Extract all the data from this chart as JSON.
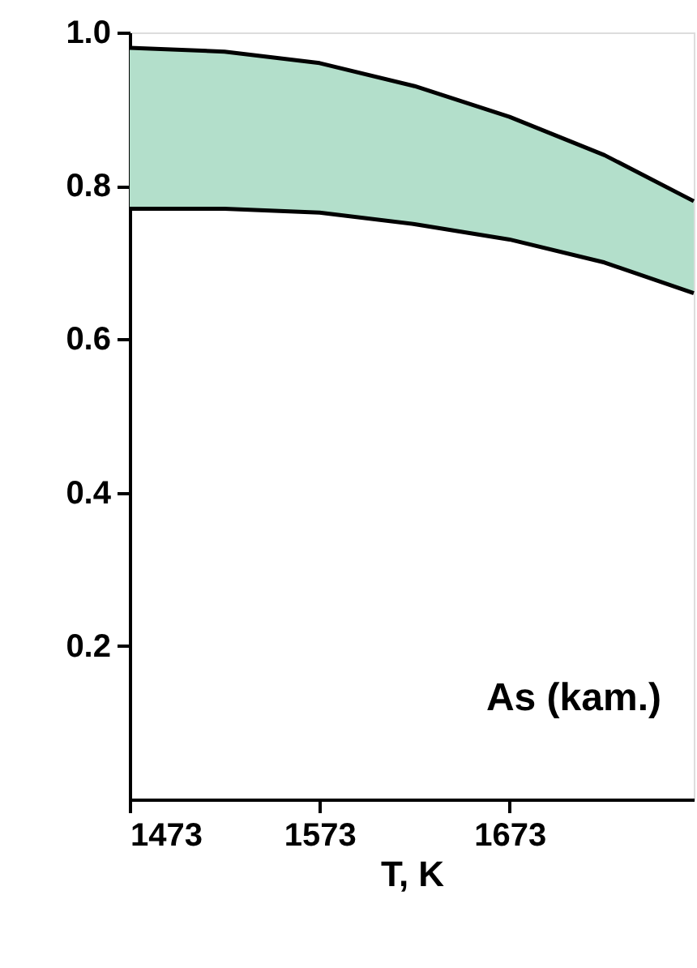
{
  "chart_data": {
    "type": "line",
    "xlabel": "T, K",
    "x": [
      1473,
      1523,
      1573,
      1623,
      1673,
      1723,
      1770
    ],
    "series": [
      {
        "color": "#000000",
        "values": [
          0.98,
          0.975,
          0.96,
          0.93,
          0.89,
          0.84,
          0.78
        ],
        "lower": [
          0.77,
          0.77,
          0.765,
          0.75,
          0.73,
          0.7,
          0.66
        ],
        "upper": [
          0.98,
          0.975,
          0.96,
          0.93,
          0.89,
          0.84,
          0.78
        ]
      },
      {
        "color": "#000000",
        "values": [
          0.77,
          0.77,
          0.765,
          0.75,
          0.73,
          0.7,
          0.66
        ]
      }
    ],
    "xlim": [
      1473,
      1770
    ],
    "ylim": [
      0,
      1.0
    ],
    "xticks": [
      1473,
      1573,
      1673
    ],
    "yticks": [
      0.2,
      0.4,
      0.6,
      0.8,
      {
        "value": 1.0,
        "label": "1.0"
      }
    ],
    "annotations": [
      "As (kam.)"
    ],
    "grid": false
  }
}
